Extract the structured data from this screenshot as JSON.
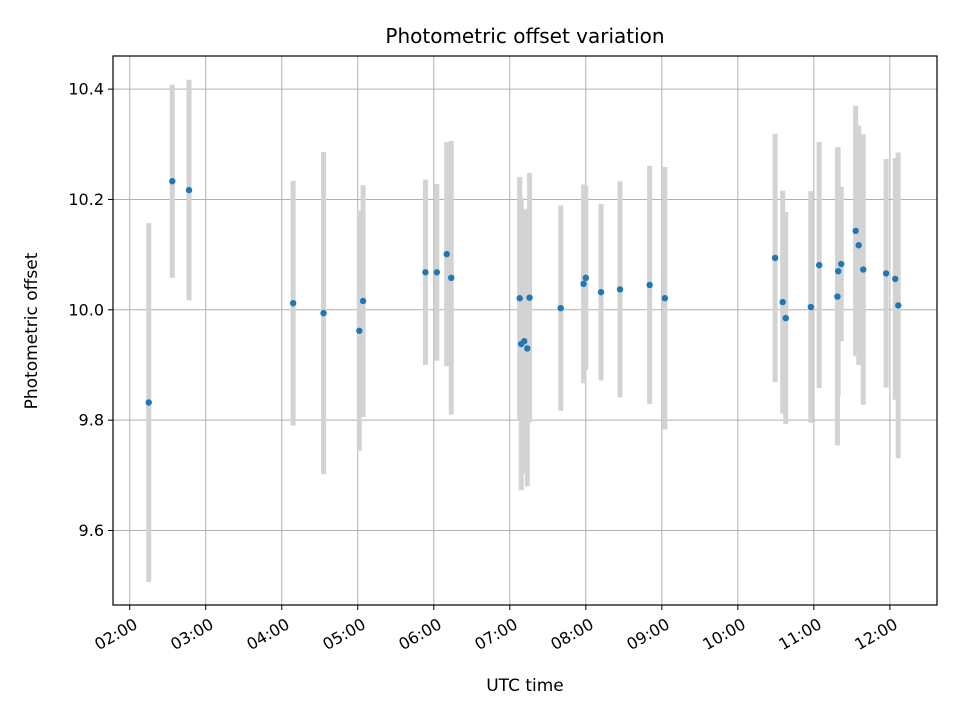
{
  "chart_data": {
    "type": "scatter",
    "title": "Photometric offset variation",
    "xlabel": "UTC time",
    "ylabel": "Photometric offset",
    "x_unit": "hours UTC",
    "xlim": [
      1.78,
      12.62
    ],
    "ylim": [
      9.465,
      10.46
    ],
    "grid": true,
    "point_color": "#1f77b4",
    "errorbar_color": "#d3d3d3",
    "xticks": [
      {
        "value": 2,
        "label": "02:00"
      },
      {
        "value": 3,
        "label": "03:00"
      },
      {
        "value": 4,
        "label": "04:00"
      },
      {
        "value": 5,
        "label": "05:00"
      },
      {
        "value": 6,
        "label": "06:00"
      },
      {
        "value": 7,
        "label": "07:00"
      },
      {
        "value": 8,
        "label": "08:00"
      },
      {
        "value": 9,
        "label": "09:00"
      },
      {
        "value": 10,
        "label": "10:00"
      },
      {
        "value": 11,
        "label": "11:00"
      },
      {
        "value": 12,
        "label": "12:00"
      }
    ],
    "yticks": [
      {
        "value": 9.6,
        "label": "9.6"
      },
      {
        "value": 9.8,
        "label": "9.8"
      },
      {
        "value": 10.0,
        "label": "10.0"
      },
      {
        "value": 10.2,
        "label": "10.2"
      },
      {
        "value": 10.4,
        "label": "10.4"
      }
    ],
    "points": [
      {
        "x": 2.25,
        "y": 9.832,
        "err": 0.325
      },
      {
        "x": 2.56,
        "y": 10.233,
        "err": 0.175
      },
      {
        "x": 2.78,
        "y": 10.217,
        "err": 0.2
      },
      {
        "x": 4.15,
        "y": 10.012,
        "err": 0.222
      },
      {
        "x": 4.55,
        "y": 9.994,
        "err": 0.292
      },
      {
        "x": 5.02,
        "y": 9.962,
        "err": 0.218
      },
      {
        "x": 5.07,
        "y": 10.016,
        "err": 0.21
      },
      {
        "x": 5.89,
        "y": 10.068,
        "err": 0.168
      },
      {
        "x": 6.04,
        "y": 10.068,
        "err": 0.16
      },
      {
        "x": 6.17,
        "y": 10.101,
        "err": 0.203
      },
      {
        "x": 6.23,
        "y": 10.058,
        "err": 0.248
      },
      {
        "x": 7.13,
        "y": 10.021,
        "err": 0.22
      },
      {
        "x": 7.15,
        "y": 9.938,
        "err": 0.265
      },
      {
        "x": 7.19,
        "y": 9.943,
        "err": 0.24
      },
      {
        "x": 7.23,
        "y": 9.93,
        "err": 0.25
      },
      {
        "x": 7.26,
        "y": 10.022,
        "err": 0.226
      },
      {
        "x": 7.67,
        "y": 10.003,
        "err": 0.186
      },
      {
        "x": 7.97,
        "y": 10.047,
        "err": 0.18
      },
      {
        "x": 8.0,
        "y": 10.058,
        "err": 0.167
      },
      {
        "x": 8.2,
        "y": 10.032,
        "err": 0.16
      },
      {
        "x": 8.45,
        "y": 10.037,
        "err": 0.196
      },
      {
        "x": 8.84,
        "y": 10.045,
        "err": 0.216
      },
      {
        "x": 9.04,
        "y": 10.021,
        "err": 0.238
      },
      {
        "x": 10.49,
        "y": 10.094,
        "err": 0.225
      },
      {
        "x": 10.59,
        "y": 10.014,
        "err": 0.202
      },
      {
        "x": 10.63,
        "y": 9.985,
        "err": 0.192
      },
      {
        "x": 10.96,
        "y": 10.005,
        "err": 0.21
      },
      {
        "x": 11.07,
        "y": 10.081,
        "err": 0.223
      },
      {
        "x": 11.31,
        "y": 10.024,
        "err": 0.27
      },
      {
        "x": 11.32,
        "y": 10.07,
        "err": 0.225
      },
      {
        "x": 11.36,
        "y": 10.083,
        "err": 0.14
      },
      {
        "x": 11.55,
        "y": 10.143,
        "err": 0.227
      },
      {
        "x": 11.59,
        "y": 10.117,
        "err": 0.217
      },
      {
        "x": 11.65,
        "y": 10.073,
        "err": 0.245
      },
      {
        "x": 11.95,
        "y": 10.066,
        "err": 0.207
      },
      {
        "x": 12.07,
        "y": 10.056,
        "err": 0.219
      },
      {
        "x": 12.11,
        "y": 10.008,
        "err": 0.277
      }
    ]
  }
}
